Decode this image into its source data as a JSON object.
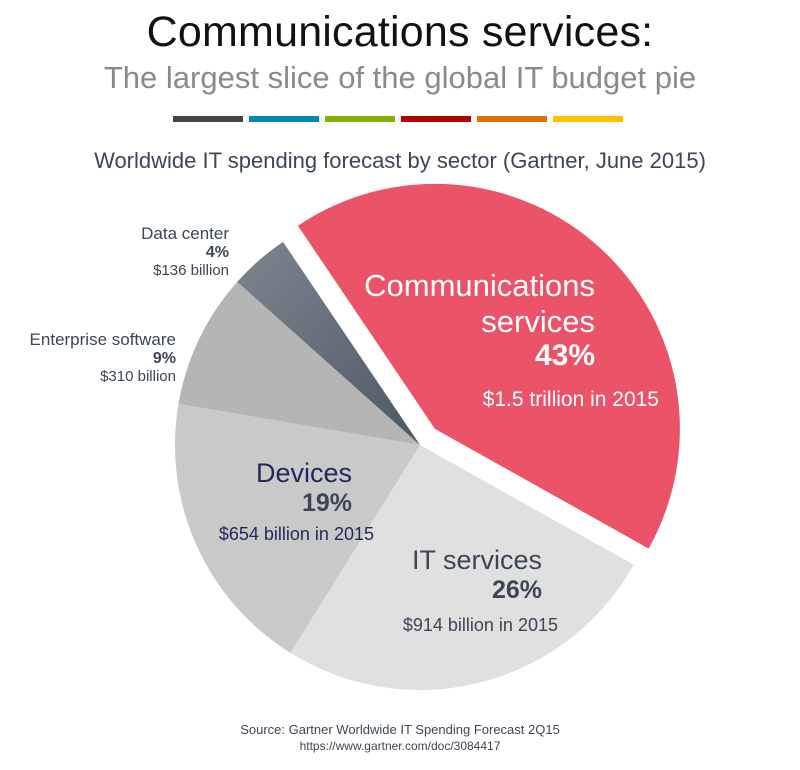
{
  "header": {
    "title": "Communications services:",
    "subtitle": "The largest slice of the global IT budget pie",
    "color_bars": [
      "#444446",
      "#0086b3",
      "#86b300",
      "#b30000",
      "#dc7000",
      "#ffc000"
    ]
  },
  "chart_data": {
    "type": "pie",
    "title": "Worldwide IT spending forecast by sector (Gartner, June 2015)",
    "start_angle_deg": -34,
    "direction": "clockwise",
    "exploded": "Communications services",
    "slices": [
      {
        "name": "Communications services",
        "percent": 43,
        "amount": "$1.5 trillion in 2015",
        "color": "#eb5468"
      },
      {
        "name": "IT services",
        "percent": 26,
        "amount": "$914 billion in 2015",
        "color": "#e0e0e0"
      },
      {
        "name": "Devices",
        "percent": 19,
        "amount": "$654 billion in 2015",
        "color": "#c9c9c9"
      },
      {
        "name": "Enterprise software",
        "percent": 9,
        "amount": "$310 billion",
        "color": "#b5b5b5"
      },
      {
        "name": "Data center",
        "percent": 4,
        "amount": "$136 billion",
        "color": "#5f6874"
      }
    ]
  },
  "labels": {
    "comm": {
      "name_line1": "Communications",
      "name_line2": "services",
      "pct": "43%",
      "amt": "$1.5 trillion in 2015"
    },
    "it": {
      "name": "IT services",
      "pct": "26%",
      "amt": "$914 billion in 2015"
    },
    "devices": {
      "name": "Devices",
      "pct": "19%",
      "amt": "$654 billion in 2015"
    },
    "enterprise": {
      "name": "Enterprise software",
      "pct": "9%",
      "amt": "$310 billion"
    },
    "datacenter": {
      "name": "Data center",
      "pct": "4%",
      "amt": "$136 billion"
    }
  },
  "footer": {
    "source": "Source: Gartner Worldwide IT Spending Forecast 2Q15",
    "url": "https://www.gartner.com/doc/3084417"
  }
}
